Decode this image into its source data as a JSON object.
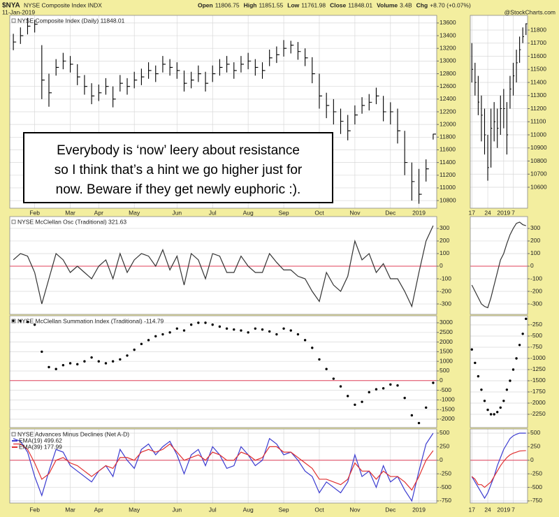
{
  "header": {
    "symbol": "$NYA",
    "name": "NYSE Composite Index INDX",
    "date": "11-Jan-2019",
    "quote": [
      {
        "label": "Open",
        "value": "11806.75"
      },
      {
        "label": "High",
        "value": "11851.55"
      },
      {
        "label": "Low",
        "value": "11761.98"
      },
      {
        "label": "Close",
        "value": "11848.01"
      },
      {
        "label": "Volume",
        "value": "3.4B"
      },
      {
        "label": "Chg",
        "value": "+8.70 (+0.07%)"
      }
    ],
    "copyright": "@StockCharts.com"
  },
  "annotation": {
    "lines": [
      "Everybody is ‘now’ leery about resistance",
      "so I think that’s a hint we go higher just for",
      "now. Beware if they get newly euphoric :)."
    ]
  },
  "chart_data": [
    {
      "type": "hlc",
      "title": "NYSE Composite Index (Daily) 11848.01",
      "color": "#000000",
      "grid": true,
      "categories": [
        null,
        null,
        null,
        "Feb",
        null,
        null,
        null,
        null,
        "Mar",
        null,
        null,
        null,
        "Apr",
        null,
        null,
        null,
        null,
        "May",
        null,
        null,
        null,
        null,
        null,
        "Jun",
        null,
        null,
        null,
        null,
        "Jul",
        null,
        null,
        null,
        null,
        "Aug",
        null,
        null,
        null,
        null,
        "Sep",
        null,
        null,
        null,
        null,
        "Oct",
        null,
        null,
        null,
        null,
        "Nov",
        null,
        null,
        null,
        null,
        "Dec",
        null,
        null,
        null,
        "2019",
        null,
        null
      ],
      "high": [
        13430,
        13530,
        13680,
        13650,
        13250,
        12800,
        13030,
        13130,
        13080,
        12950,
        12780,
        12650,
        12630,
        12730,
        12600,
        12780,
        12730,
        12830,
        12880,
        12980,
        12930,
        13080,
        13030,
        12980,
        12850,
        12830,
        12930,
        12830,
        12930,
        13030,
        13080,
        12980,
        13080,
        13130,
        13030,
        12980,
        13180,
        13230,
        13330,
        13320,
        13300,
        13200,
        13060,
        12800,
        12500,
        12400,
        12250,
        12150,
        12300,
        12430,
        12480,
        12580,
        12450,
        12350,
        12250,
        11900,
        11400,
        11300,
        11450,
        11851.55
      ],
      "low": [
        13170,
        13270,
        13420,
        13450,
        12400,
        12280,
        12770,
        12870,
        12820,
        12620,
        12470,
        12320,
        12370,
        12470,
        12270,
        12520,
        12470,
        12570,
        12620,
        12720,
        12670,
        12820,
        12770,
        12720,
        12520,
        12570,
        12670,
        12520,
        12670,
        12770,
        12820,
        12720,
        12820,
        12870,
        12770,
        12720,
        12920,
        12970,
        13070,
        13120,
        13020,
        12920,
        12650,
        12250,
        12100,
        12000,
        11850,
        11750,
        12000,
        12170,
        12220,
        12320,
        12050,
        12000,
        11700,
        11200,
        10800,
        10750,
        11100,
        11761.98
      ],
      "close": [
        13300,
        13400,
        13550,
        13580,
        12700,
        12500,
        12900,
        13000,
        12950,
        12750,
        12600,
        12450,
        12500,
        12600,
        12400,
        12650,
        12600,
        12700,
        12750,
        12850,
        12800,
        12950,
        12900,
        12850,
        12650,
        12700,
        12800,
        12650,
        12800,
        12900,
        12950,
        12850,
        12950,
        13000,
        12900,
        12850,
        13050,
        13100,
        13200,
        13250,
        13150,
        13050,
        12800,
        12450,
        12300,
        12200,
        12050,
        11900,
        12150,
        12300,
        12350,
        12450,
        12200,
        12200,
        11900,
        11400,
        11100,
        10900,
        11300,
        11848.01
      ],
      "ylim": [
        10680,
        13720
      ],
      "yticks": [
        10800,
        11000,
        11200,
        11400,
        11600,
        11800,
        12000,
        12200,
        12400,
        12600,
        12800,
        13000,
        13200,
        13400,
        13600
      ]
    },
    {
      "type": "hlc",
      "color": "#000000",
      "grid": true,
      "categories": [
        "17",
        null,
        null,
        null,
        null,
        "24",
        null,
        null,
        null,
        null,
        "2019",
        null,
        null,
        "7",
        null,
        null,
        null,
        null
      ],
      "high": [
        11700,
        11550,
        11450,
        11300,
        11200,
        11000,
        11200,
        11250,
        11200,
        11300,
        11350,
        11250,
        11450,
        11550,
        11650,
        11750,
        11820,
        11851.55
      ],
      "low": [
        11400,
        11300,
        11150,
        10950,
        10850,
        10650,
        10750,
        10950,
        10900,
        11000,
        11050,
        10850,
        11200,
        11300,
        11400,
        11550,
        11700,
        11761.98
      ],
      "close": [
        11500,
        11400,
        11250,
        11150,
        11000,
        10750,
        11050,
        11100,
        11050,
        11200,
        11200,
        11000,
        11350,
        11450,
        11550,
        11650,
        11750,
        11848.01
      ],
      "ylim": [
        10440,
        11912
      ],
      "yticks": [
        10600,
        10700,
        10800,
        10900,
        11000,
        11100,
        11200,
        11300,
        11400,
        11500,
        11600,
        11700,
        11800
      ]
    },
    {
      "type": "line",
      "title": "NYSE McClellan Osc (Traditional) 321.63",
      "color": "#333333",
      "grid": true,
      "zero_line_color": "#e0405a",
      "categories": [
        null,
        null,
        null,
        null,
        null,
        null,
        null,
        null,
        null,
        null,
        null,
        null,
        null,
        null,
        null,
        null,
        null,
        null,
        null,
        null,
        null,
        null,
        null,
        null,
        null,
        null,
        null,
        null,
        null,
        null,
        null,
        null,
        null,
        null,
        null,
        null,
        null,
        null,
        null,
        null,
        null,
        null,
        null,
        null,
        null,
        null,
        null,
        null,
        null,
        null,
        null,
        null,
        null,
        null,
        null,
        null,
        null,
        null,
        null,
        null
      ],
      "values": [
        50,
        100,
        80,
        -50,
        -300,
        -100,
        100,
        50,
        -50,
        0,
        -50,
        -100,
        0,
        50,
        -100,
        100,
        -50,
        50,
        100,
        80,
        0,
        130,
        -30,
        80,
        -150,
        100,
        50,
        -100,
        100,
        80,
        -50,
        -50,
        80,
        0,
        -50,
        -50,
        100,
        30,
        -30,
        -30,
        -80,
        -100,
        -200,
        -280,
        -50,
        -150,
        -200,
        -80,
        200,
        50,
        100,
        -50,
        20,
        -100,
        -100,
        -200,
        -320,
        -50,
        200,
        321.63
      ],
      "ylim": [
        -383,
        394
      ],
      "yticks": [
        300,
        200,
        100,
        0,
        -100,
        -200,
        -300
      ]
    },
    {
      "type": "line",
      "color": "#333333",
      "grid": true,
      "zero_line_color": "#e0405a",
      "categories": [
        null,
        null,
        null,
        null,
        null,
        null,
        null,
        null,
        null,
        null,
        null,
        null,
        null,
        null,
        null,
        null,
        null,
        null
      ],
      "values": [
        -150,
        -200,
        -250,
        -300,
        -320,
        -330,
        -250,
        -150,
        -50,
        50,
        100,
        180,
        250,
        300,
        340,
        350,
        330,
        321.63
      ],
      "ylim": [
        -383,
        394
      ],
      "yticks": [
        300,
        200,
        100,
        0,
        -100,
        -200,
        -300
      ]
    },
    {
      "type": "dot",
      "title": "NYSE McClellan Summation Index (Traditional) -114.79",
      "color": "#000000",
      "grid": true,
      "zero_line_color": "#e0405a",
      "categories": [
        null,
        null,
        null,
        null,
        null,
        null,
        null,
        null,
        null,
        null,
        null,
        null,
        null,
        null,
        null,
        null,
        null,
        null,
        null,
        null,
        null,
        null,
        null,
        null,
        null,
        null,
        null,
        null,
        null,
        null,
        null,
        null,
        null,
        null,
        null,
        null,
        null,
        null,
        null,
        null,
        null,
        null,
        null,
        null,
        null,
        null,
        null,
        null,
        null,
        null,
        null,
        null,
        null,
        null,
        null,
        null,
        null,
        null,
        null,
        null
      ],
      "values": [
        3100,
        3100,
        3050,
        2900,
        1500,
        700,
        600,
        800,
        900,
        850,
        1000,
        1200,
        1000,
        900,
        1000,
        1100,
        1300,
        1600,
        1900,
        2100,
        2300,
        2400,
        2500,
        2700,
        2600,
        2900,
        3000,
        3000,
        2900,
        2800,
        2700,
        2650,
        2600,
        2500,
        2700,
        2650,
        2550,
        2400,
        2700,
        2600,
        2400,
        2100,
        1700,
        1100,
        600,
        100,
        -300,
        -800,
        -1250,
        -1100,
        -600,
        -450,
        -400,
        -200,
        -250,
        -900,
        -1800,
        -2200,
        -1400,
        -114.79
      ],
      "ylim": [
        -2435,
        3362
      ],
      "yticks": [
        3000,
        2500,
        2000,
        1500,
        1000,
        500,
        0,
        -500,
        -1000,
        -1500,
        -2000
      ]
    },
    {
      "type": "dot",
      "color": "#000000",
      "grid": true,
      "categories": [
        null,
        null,
        null,
        null,
        null,
        null,
        null,
        null,
        null,
        null,
        null,
        null,
        null,
        null,
        null,
        null,
        null,
        null
      ],
      "values": [
        -800,
        -1100,
        -1400,
        -1700,
        -1950,
        -2150,
        -2250,
        -2250,
        -2200,
        -2100,
        -1950,
        -1700,
        -1500,
        -1250,
        -1000,
        -700,
        -450,
        -114.79
      ],
      "ylim": [
        -2547,
        -47
      ],
      "yticks": [
        -250,
        -500,
        -750,
        -1000,
        -1250,
        -1500,
        -1750,
        -2000,
        -2250
      ]
    },
    {
      "type": "line",
      "title": "NYSE Advances Minus Declines (Net A-D)",
      "legend": true,
      "grid": true,
      "zero_line_color": "#e0405a",
      "categories": [
        null,
        null,
        null,
        "Feb",
        null,
        null,
        null,
        null,
        "Mar",
        null,
        null,
        null,
        "Apr",
        null,
        null,
        null,
        null,
        "May",
        null,
        null,
        null,
        null,
        null,
        "Jun",
        null,
        null,
        null,
        null,
        "Jul",
        null,
        null,
        null,
        null,
        "Aug",
        null,
        null,
        null,
        null,
        "Sep",
        null,
        null,
        null,
        null,
        "Oct",
        null,
        null,
        null,
        null,
        "Nov",
        null,
        null,
        null,
        null,
        "Dec",
        null,
        null,
        null,
        "2019",
        null,
        null
      ],
      "series": [
        {
          "name": "EMA(19) 499.62",
          "color": "#3b3bd0",
          "values": [
            400,
            350,
            150,
            -300,
            -650,
            -200,
            200,
            150,
            -100,
            -200,
            -300,
            -400,
            -200,
            -100,
            -300,
            200,
            0,
            -150,
            200,
            300,
            100,
            250,
            350,
            100,
            -250,
            100,
            200,
            -100,
            250,
            100,
            -150,
            -100,
            250,
            100,
            -100,
            0,
            400,
            300,
            100,
            150,
            0,
            -200,
            -300,
            -600,
            -400,
            -500,
            -600,
            -400,
            100,
            -300,
            -200,
            -500,
            -100,
            -400,
            -300,
            -550,
            -750,
            -200,
            300,
            499.62
          ]
        },
        {
          "name": "EMA(39) 177.99",
          "color": "#e03030",
          "values": [
            300,
            300,
            200,
            -50,
            -350,
            -250,
            0,
            50,
            -50,
            -100,
            -200,
            -300,
            -200,
            -100,
            -150,
            50,
            50,
            0,
            150,
            200,
            150,
            200,
            300,
            150,
            0,
            50,
            100,
            0,
            150,
            100,
            0,
            0,
            150,
            100,
            0,
            50,
            250,
            250,
            150,
            150,
            50,
            -50,
            -150,
            -350,
            -350,
            -400,
            -450,
            -350,
            -50,
            -200,
            -200,
            -350,
            -200,
            -300,
            -300,
            -400,
            -550,
            -300,
            0,
            177.99
          ]
        }
      ],
      "ylim": [
        -789,
        577
      ],
      "yticks": [
        500,
        250,
        0,
        -250,
        -500,
        -750
      ]
    },
    {
      "type": "line",
      "grid": true,
      "zero_line_color": "#e0405a",
      "categories": [
        "17",
        null,
        null,
        null,
        null,
        "24",
        null,
        null,
        null,
        null,
        "2019",
        null,
        null,
        "7",
        null,
        null,
        null,
        null
      ],
      "series": [
        {
          "color": "#3b3bd0",
          "values": [
            -300,
            -400,
            -500,
            -600,
            -700,
            -600,
            -450,
            -300,
            -100,
            50,
            200,
            300,
            400,
            450,
            480,
            500,
            500,
            499.62
          ]
        },
        {
          "color": "#e03030",
          "values": [
            -300,
            -350,
            -450,
            -450,
            -500,
            -450,
            -400,
            -300,
            -200,
            -100,
            -20,
            50,
            100,
            130,
            150,
            170,
            175,
            177.99
          ]
        }
      ],
      "ylim": [
        -789,
        577
      ],
      "yticks": [
        500,
        250,
        0,
        -250,
        -500,
        -750
      ]
    }
  ]
}
